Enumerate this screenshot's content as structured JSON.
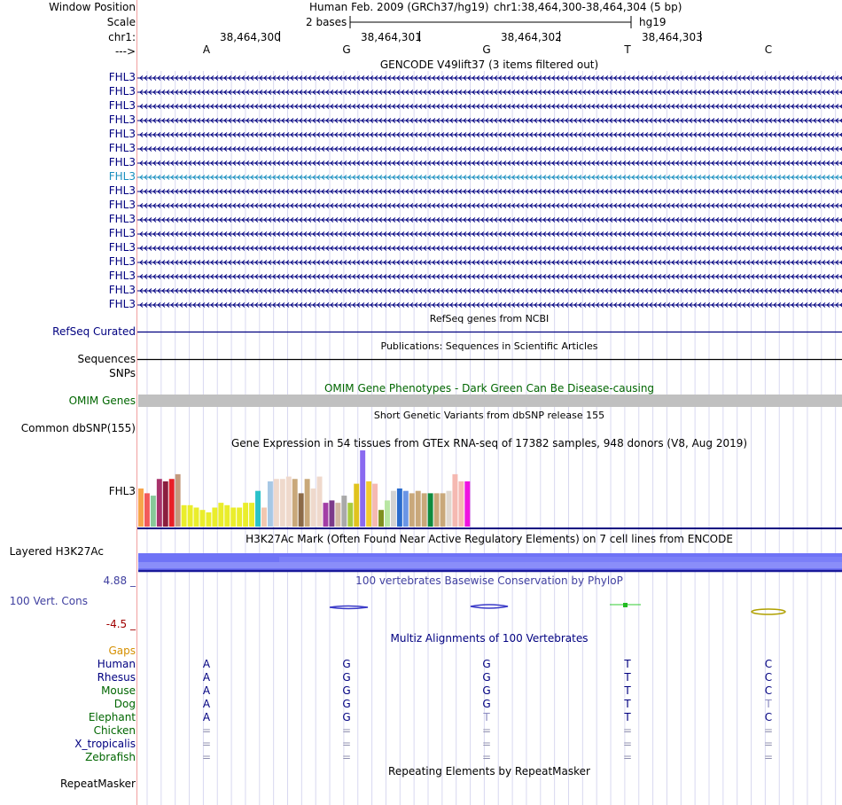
{
  "header": {
    "window_position_label": "Window Position",
    "assembly_title": "Human Feb. 2009 (GRCh37/hg19)",
    "position": "chr1:38,464,300-38,464,304 (5 bp)",
    "scale_label": "Scale",
    "scale_text": "2 bases",
    "scale_db": "hg19",
    "chrom_label": "chr1:",
    "coords": [
      "38,464,300",
      "38,464,301",
      "38,464,302",
      "38,464,303"
    ],
    "strand_label": "--->",
    "bases": [
      "A",
      "G",
      "G",
      "T",
      "C"
    ]
  },
  "gencode": {
    "title": "GENCODE V49lift37 (3 items filtered out)",
    "transcripts": [
      "FHL3",
      "FHL3",
      "FHL3",
      "FHL3",
      "FHL3",
      "FHL3",
      "FHL3",
      "FHL3",
      "FHL3",
      "FHL3",
      "FHL3",
      "FHL3",
      "FHL3",
      "FHL3",
      "FHL3",
      "FHL3",
      "FHL3"
    ],
    "highlighted_index": 7
  },
  "refseq": {
    "title": "RefSeq genes from NCBI",
    "label": "RefSeq Curated"
  },
  "publications": {
    "title": "Publications: Sequences in Scientific Articles",
    "label": "Sequences"
  },
  "snps": {
    "label": "SNPs"
  },
  "omim": {
    "title": "OMIM Gene Phenotypes - Dark Green Can Be Disease-causing",
    "label": "OMIM Genes"
  },
  "dbsnp": {
    "title": "Short Genetic Variants from dbSNP release 155",
    "label": "Common dbSNP(155)"
  },
  "gtex": {
    "title": "Gene Expression in 54 tissues from GTEx RNA-seq of 17382 samples, 948 donors (V8, Aug 2019)",
    "label": "FHL3",
    "values": [
      16,
      14,
      13,
      20,
      19,
      20,
      22,
      9,
      9,
      8,
      7,
      6,
      8,
      10,
      9,
      8,
      8,
      10,
      10,
      15,
      8,
      19,
      20,
      20,
      21,
      20,
      14,
      20,
      16,
      21,
      10,
      11,
      10,
      13,
      10,
      18,
      32,
      19,
      18,
      7,
      11,
      15,
      16,
      15,
      14,
      15,
      14,
      14,
      14,
      14,
      15,
      22,
      19,
      19
    ],
    "colors": [
      "#f7a54a",
      "#f25a5a",
      "#88c999",
      "#a8336b",
      "#8b1e3f",
      "#e81f27",
      "#c49a7e",
      "#eaed2b",
      "#eaed2b",
      "#eaed2b",
      "#eaed2b",
      "#eaed2b",
      "#eaed2b",
      "#eaed2b",
      "#eaed2b",
      "#eaed2b",
      "#eaed2b",
      "#eaed2b",
      "#eaed2b",
      "#2bc2c9",
      "#f1c7b0",
      "#a7c8e5",
      "#efd9cc",
      "#efd9cc",
      "#efd9cc",
      "#c9a87a",
      "#8c6a47",
      "#c9a87a",
      "#efd9cc",
      "#efd9cc",
      "#a23da6",
      "#7c3a8a",
      "#d3b8a3",
      "#a9a9a9",
      "#a9cc3e",
      "#e0c31e",
      "#8a6af0",
      "#f2cc2e",
      "#f5b9b2",
      "#7f8f1f",
      "#b9e6a3",
      "#d3d3d3",
      "#2a6ccd",
      "#6a95e6",
      "#c9a87a",
      "#c9a87a",
      "#c9a87a",
      "#0e8b3e",
      "#c9a87a",
      "#c9a87a",
      "#e0d8d0",
      "#f5b9b2",
      "#f5b9b2",
      "#ef13e0"
    ]
  },
  "h3k27ac": {
    "title": "H3K27Ac Mark (Often Found Near Active Regulatory Elements) on 7 cell lines from ENCODE",
    "label": "Layered H3K27Ac"
  },
  "phylop": {
    "title": "100 vertebrates Basewise Conservation by PhyloP",
    "label": "100 Vert. Cons",
    "max_label": "4.88 _",
    "min_label": "-4.5 _"
  },
  "multiz": {
    "title": "Multiz Alignments of 100 Vertebrates",
    "gaps_label": "Gaps",
    "species": [
      {
        "name": "Human",
        "bases": [
          "A",
          "G",
          "G",
          "T",
          "C"
        ],
        "color": "#000080"
      },
      {
        "name": "Rhesus",
        "bases": [
          "A",
          "G",
          "G",
          "T",
          "C"
        ],
        "color": "#000080"
      },
      {
        "name": "Mouse",
        "bases": [
          "A",
          "G",
          "G",
          "T",
          "C"
        ],
        "color": "#006600"
      },
      {
        "name": "Dog",
        "bases": [
          "A",
          "G",
          "G",
          "T",
          "T"
        ],
        "color": "#006600"
      },
      {
        "name": "Elephant",
        "bases": [
          "A",
          "G",
          "T",
          "T",
          "C"
        ],
        "color": "#006600"
      },
      {
        "name": "Chicken",
        "bases": [
          "=",
          "=",
          "=",
          "=",
          "="
        ],
        "color": "#006600"
      },
      {
        "name": "X_tropicalis",
        "bases": [
          "=",
          "=",
          "=",
          "=",
          "="
        ],
        "color": "#000080"
      },
      {
        "name": "Zebrafish",
        "bases": [
          "=",
          "=",
          "=",
          "=",
          "="
        ],
        "color": "#006600"
      }
    ]
  },
  "repeatmasker": {
    "title": "Repeating Elements by RepeatMasker",
    "label": "RepeatMasker"
  },
  "colors": {
    "label_blue": "#000080",
    "highlight": "#1a8fbf",
    "omim_band": "#c0c0c0",
    "h3k27ac_band": "#6f73f6",
    "h3k27ac_line": "#1a1a9a"
  }
}
